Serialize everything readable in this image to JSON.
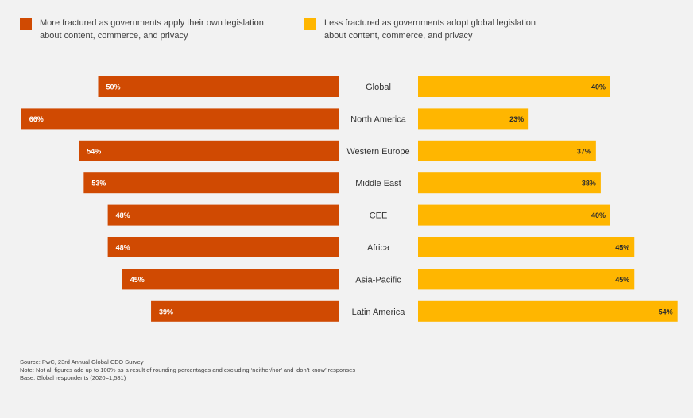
{
  "chart_data": {
    "type": "bar",
    "orientation": "horizontal-diverging",
    "title": "",
    "categories": [
      "Global",
      "North America",
      "Western Europe",
      "Middle East",
      "CEE",
      "Africa",
      "Asia-Pacific",
      "Latin America"
    ],
    "series": [
      {
        "name": "More fractured as governments apply their own legislation about content, commerce, and privacy",
        "color": "#d04a02",
        "label_color": "#ffffff",
        "values": [
          50,
          66,
          54,
          53,
          48,
          48,
          45,
          39
        ]
      },
      {
        "name": "Less fractured as governments adopt global legislation about content, commerce, and privacy",
        "color": "#ffb600",
        "label_color": "#2d2d2d",
        "values": [
          40,
          23,
          37,
          38,
          40,
          45,
          45,
          54
        ]
      }
    ],
    "value_suffix": "%",
    "xlabel": "",
    "ylabel": "",
    "xlim": [
      0,
      66
    ],
    "grid": false,
    "legend_position": "top"
  },
  "legend": [
    {
      "line1": "More fractured as governments apply their own legislation",
      "line2": "about content, commerce, and privacy",
      "color": "#d04a02"
    },
    {
      "line1": "Less fractured as governments adopt global legislation",
      "line2": "about content, commerce, and privacy",
      "color": "#ffb600"
    }
  ],
  "footnotes": {
    "source": "Source: PwC, 23rd Annual Global CEO Survey",
    "note": "Note: Not all figures add up to 100% as a result of rounding percentages and excluding ‘neither/nor’ and ‘don’t know’ responses",
    "base": "Base: Global respondents (2020=1,581)"
  }
}
